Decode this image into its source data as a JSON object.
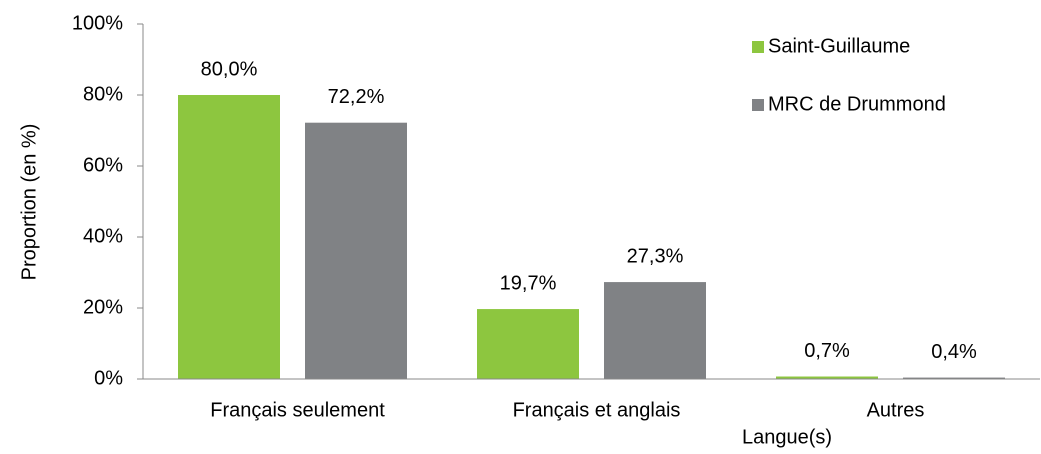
{
  "chart_data": {
    "type": "bar",
    "categories": [
      "Français seulement",
      "Français et anglais",
      "Autres"
    ],
    "series": [
      {
        "name": "Saint-Guillaume",
        "color": "#8dc63f",
        "values": [
          80.0,
          19.7,
          0.7
        ],
        "value_labels": [
          "80,0%",
          "19,7%",
          "0,7%"
        ]
      },
      {
        "name": "MRC de Drummond",
        "color": "#808285",
        "values": [
          72.2,
          27.3,
          0.4
        ],
        "value_labels": [
          "72,2%",
          "27,3%",
          "0,4%"
        ]
      }
    ],
    "ylabel": "Proportion (en %)",
    "xlabel": "Langue(s)",
    "ylim": [
      0,
      100
    ],
    "yticks": [
      {
        "value": 0,
        "label": "0%"
      },
      {
        "value": 20,
        "label": "20%"
      },
      {
        "value": 40,
        "label": "40%"
      },
      {
        "value": 60,
        "label": "60%"
      },
      {
        "value": 80,
        "label": "80%"
      },
      {
        "value": 100,
        "label": "100%"
      }
    ],
    "grid": false,
    "legend": "top-right"
  }
}
